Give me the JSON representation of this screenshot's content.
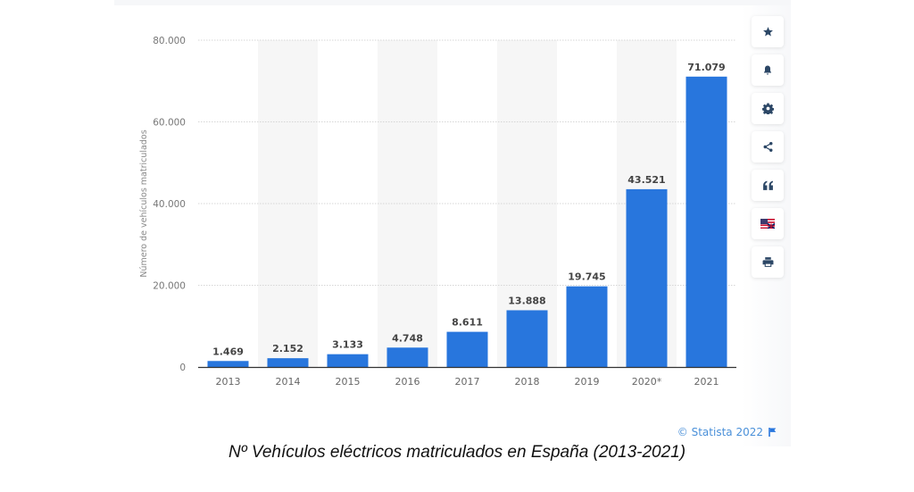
{
  "chart_data": {
    "type": "bar",
    "categories": [
      "2013",
      "2014",
      "2015",
      "2016",
      "2017",
      "2018",
      "2019",
      "2020*",
      "2021"
    ],
    "values": [
      1469,
      2152,
      3133,
      4748,
      8611,
      13888,
      19745,
      43521,
      71079
    ],
    "value_labels": [
      "1.469",
      "2.152",
      "3.133",
      "4.748",
      "8.611",
      "13.888",
      "19.745",
      "43.521",
      "71.079"
    ],
    "title": "Nº Vehículos eléctricos matriculados en España (2013-2021)",
    "xlabel": "",
    "ylabel": "Número de vehículos matriculados",
    "ylim": [
      0,
      80000
    ],
    "yticks": [
      0,
      20000,
      40000,
      60000,
      80000
    ],
    "ytick_labels": [
      "0",
      "20.000",
      "40.000",
      "60.000",
      "80.000"
    ],
    "grid": true,
    "bar_color": "#2876dd"
  },
  "sidebar": {
    "items": [
      {
        "icon": "star-icon",
        "label": "Favorite"
      },
      {
        "icon": "bell-icon",
        "label": "Notifications"
      },
      {
        "icon": "gear-icon",
        "label": "Settings"
      },
      {
        "icon": "share-icon",
        "label": "Share"
      },
      {
        "icon": "quote-icon",
        "label": "Cite"
      },
      {
        "icon": "flag-uk-icon",
        "label": "Language"
      },
      {
        "icon": "print-icon",
        "label": "Print"
      }
    ]
  },
  "credit": {
    "text": "© Statista 2022",
    "color": "#4a90d9"
  },
  "caption": "Nº Vehículos eléctricos matriculados en España (2013-2021)"
}
